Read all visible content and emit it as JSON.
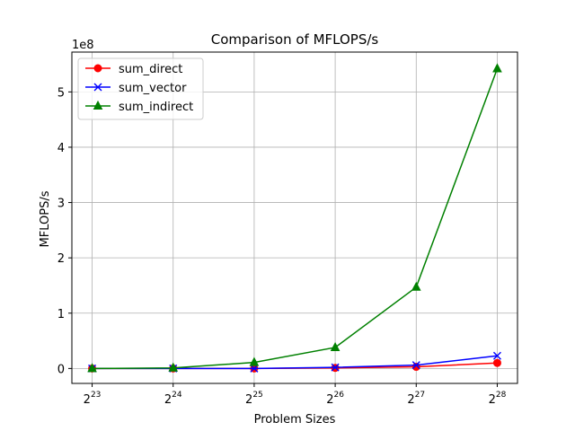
{
  "chart_data": {
    "type": "line",
    "title": "Comparison of MFLOPS/s",
    "xlabel": "Problem Sizes",
    "ylabel": "MFLOPS/s",
    "y_offset_label": "1e8",
    "x_scale": "log2",
    "x": [
      8388608,
      16777216,
      33554432,
      67108864,
      134217728,
      268435456
    ],
    "x_tick_bases": [
      "2",
      "2",
      "2",
      "2",
      "2",
      "2"
    ],
    "x_tick_exponents": [
      "23",
      "24",
      "25",
      "26",
      "27",
      "28"
    ],
    "ylim": [
      -0.27,
      5.72
    ],
    "y_ticks": [
      0,
      1,
      2,
      3,
      4,
      5
    ],
    "y_tick_labels": [
      "0",
      "1",
      "2",
      "3",
      "4",
      "5"
    ],
    "y_unit_multiplier": 100000000,
    "grid": true,
    "legend_position": "top-left",
    "series": [
      {
        "name": "sum_direct",
        "color": "#ff0000",
        "marker": "circle",
        "values": [
          0.0,
          0.0,
          0.0,
          0.01,
          0.03,
          0.1
        ]
      },
      {
        "name": "sum_vector",
        "color": "#0000ff",
        "marker": "x",
        "values": [
          0.0,
          0.0,
          0.0,
          0.02,
          0.06,
          0.23
        ]
      },
      {
        "name": "sum_indirect",
        "color": "#008000",
        "marker": "triangle",
        "values": [
          0.0,
          0.01,
          0.11,
          0.38,
          1.47,
          5.42
        ]
      }
    ]
  }
}
